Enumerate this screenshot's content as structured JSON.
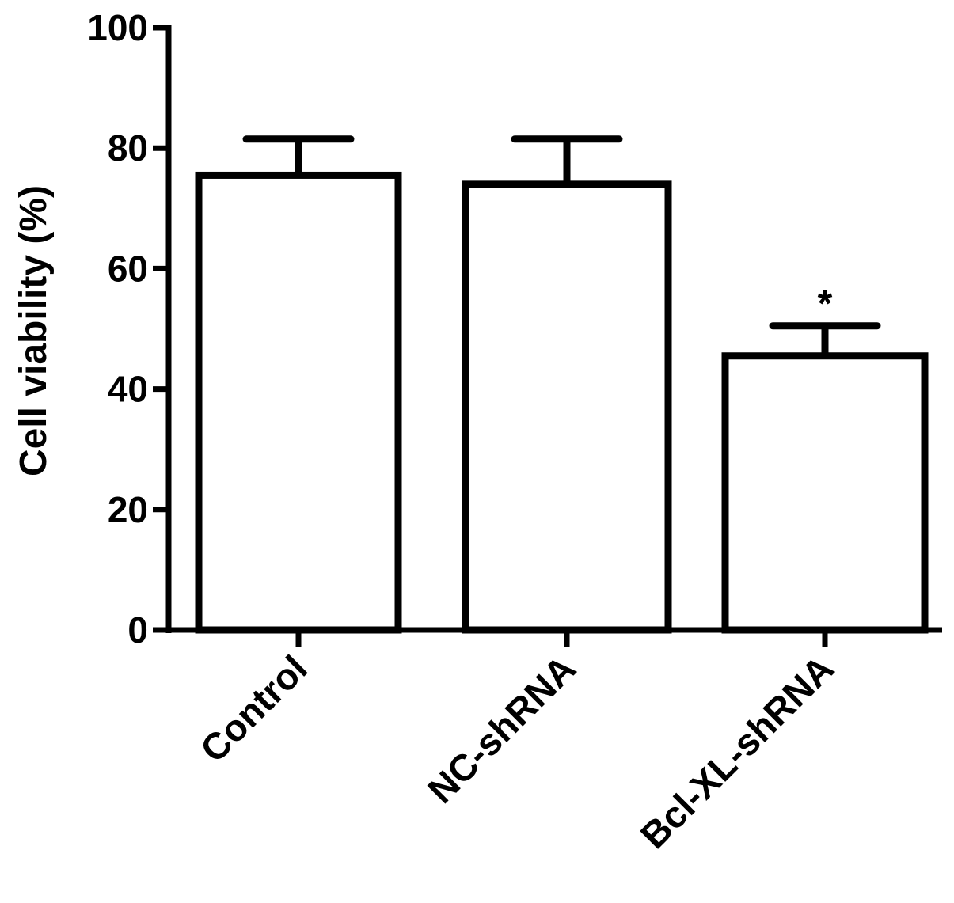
{
  "chart_data": {
    "type": "bar",
    "title": "",
    "xlabel": "",
    "ylabel": "Cell viability (%)",
    "ylim": [
      0,
      100
    ],
    "yticks": [
      0,
      20,
      40,
      60,
      80,
      100
    ],
    "categories": [
      "Control",
      "NC-shRNA",
      "Bcl-XL-shRNA"
    ],
    "values": [
      75.5,
      74,
      45.5
    ],
    "error": [
      6,
      7.5,
      5
    ],
    "annotations": [
      "",
      "",
      "*"
    ],
    "bar_fill": "#ffffff",
    "stroke_color": "#000000",
    "grid": false,
    "legend": "none"
  }
}
